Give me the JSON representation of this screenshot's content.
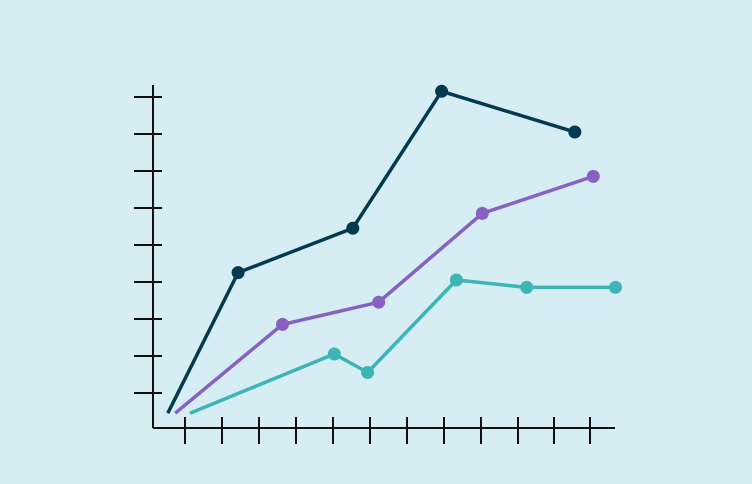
{
  "chart_data": {
    "type": "line",
    "title": "",
    "xlabel": "",
    "ylabel": "",
    "xlim": [
      0,
      12.6
    ],
    "ylim": [
      0,
      9.3
    ],
    "grid": false,
    "tick_labels": false,
    "background": "#d5edf3",
    "axis_color": "#111111",
    "series": [
      {
        "color": "#033a50",
        "first_point_marker": false,
        "points": [
          [
            0.4,
            0.4
          ],
          [
            2.3,
            4.2
          ],
          [
            5.4,
            5.4
          ],
          [
            7.8,
            9.1
          ],
          [
            11.4,
            8.0
          ]
        ]
      },
      {
        "color": "#8661c1",
        "first_point_marker": false,
        "points": [
          [
            0.6,
            0.4
          ],
          [
            3.5,
            2.8
          ],
          [
            6.1,
            3.4
          ],
          [
            8.9,
            5.8
          ],
          [
            11.9,
            6.8
          ]
        ]
      },
      {
        "color": "#3db5b5",
        "first_point_marker": false,
        "points": [
          [
            1.0,
            0.4
          ],
          [
            4.9,
            2.0
          ],
          [
            5.8,
            1.5
          ],
          [
            8.2,
            4.0
          ],
          [
            10.1,
            3.8
          ],
          [
            12.5,
            3.8
          ]
        ]
      }
    ]
  }
}
